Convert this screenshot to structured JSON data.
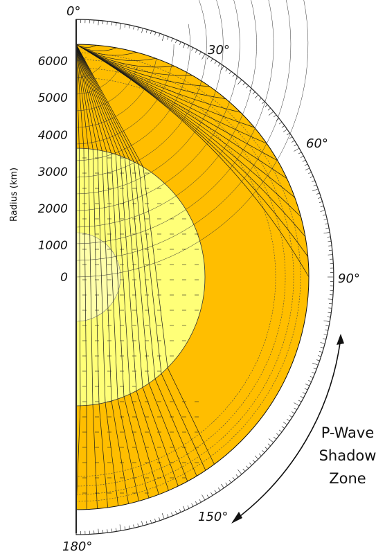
{
  "diagram": {
    "axis_label": "Radius (km)",
    "radius_ticks": [
      "6000",
      "5000",
      "4000",
      "3000",
      "2000",
      "1000",
      "0"
    ],
    "angle_labels": [
      "0°",
      "30°",
      "60°",
      "90°",
      "150°",
      "180°"
    ],
    "shadow_zone_label": [
      "P-Wave",
      "Shadow",
      "Zone"
    ],
    "colors": {
      "mantle": "#FFBE00",
      "outer_core": "#FFFF78",
      "inner_core": "#FFFFAA",
      "ray": "#1a1a1a",
      "wavefront": "#333333"
    }
  }
}
